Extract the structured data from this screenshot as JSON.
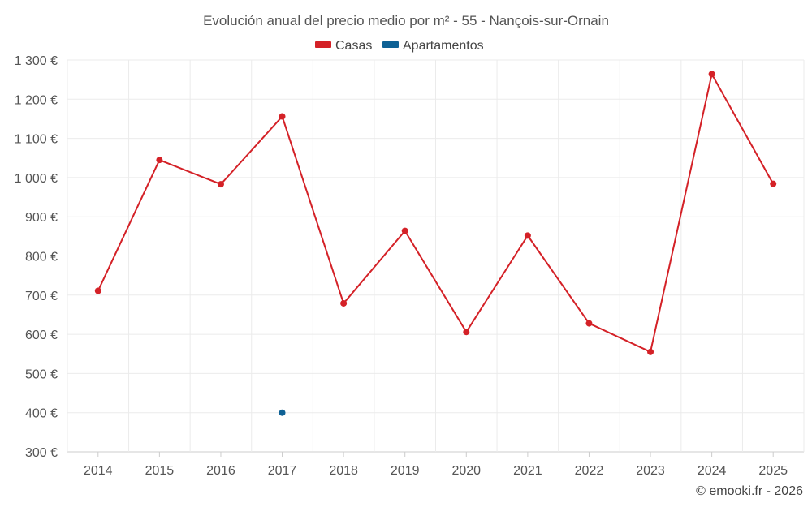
{
  "chart_data": {
    "type": "line",
    "title": "Evolución anual del precio medio por m² - 55 - Nançois-sur-Ornain",
    "categories": [
      "2014",
      "2015",
      "2016",
      "2017",
      "2018",
      "2019",
      "2020",
      "2021",
      "2022",
      "2023",
      "2024",
      "2025"
    ],
    "ylim": [
      300,
      1300
    ],
    "yticks": [
      300,
      400,
      500,
      600,
      700,
      800,
      900,
      1000,
      1100,
      1200,
      1300
    ],
    "ytick_labels": [
      "300 €",
      "400 €",
      "500 €",
      "600 €",
      "700 €",
      "800 €",
      "900 €",
      "1 000 €",
      "1 100 €",
      "1 200 €",
      "1 300 €"
    ],
    "grid": true,
    "legend_position": "top-center",
    "series": [
      {
        "name": "Casas",
        "color": "#d42127",
        "values": [
          711,
          1045,
          983,
          1156,
          679,
          864,
          606,
          852,
          628,
          555,
          1264,
          984
        ]
      },
      {
        "name": "Apartamentos",
        "color": "#0e6195",
        "values": [
          null,
          null,
          null,
          400,
          null,
          null,
          null,
          null,
          null,
          null,
          null,
          null
        ]
      }
    ],
    "credit": "© emooki.fr - 2026"
  }
}
